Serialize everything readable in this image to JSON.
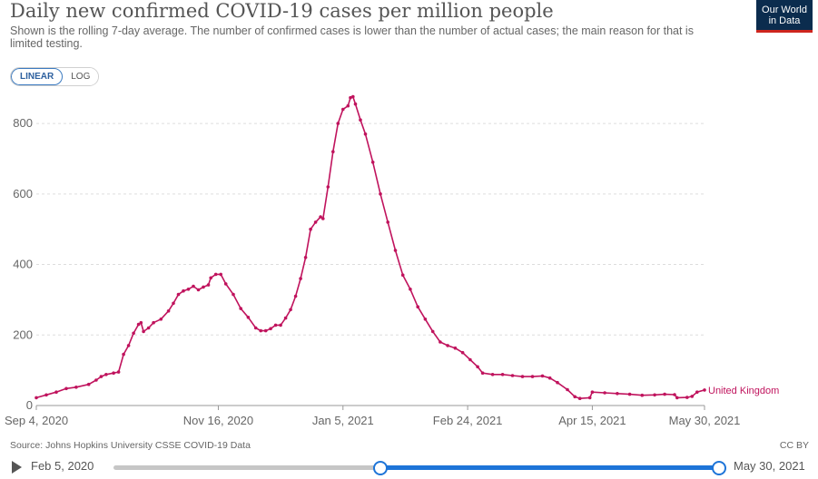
{
  "header": {
    "title": "Daily new confirmed COVID-19 cases per million people",
    "subtitle": "Shown is the rolling 7-day average. The number of confirmed cases is lower than the number of actual cases; the main reason for that is limited testing.",
    "logo_line1": "Our World",
    "logo_line2": "in Data"
  },
  "controls": {
    "linear_label": "LINEAR",
    "log_label": "LOG",
    "active_scale": "linear"
  },
  "footer": {
    "source": "Source: Johns Hopkins University CSSE COVID-19 Data",
    "license": "CC BY"
  },
  "timeline": {
    "start_label": "Feb 5, 2020",
    "end_label": "May 30, 2021",
    "range_start": "2020-09-04",
    "range_end": "2021-05-30"
  },
  "colors": {
    "series": "#c0135d",
    "grid": "#dddddd",
    "axis_text": "#666666",
    "accent": "#1d74d8"
  },
  "chart_data": {
    "type": "line",
    "title": "Daily new confirmed COVID-19 cases per million people",
    "xlabel": "",
    "ylabel": "",
    "ylim": [
      0,
      880
    ],
    "xlim": [
      "2020-09-04",
      "2021-05-30"
    ],
    "y_ticks": [
      0,
      200,
      400,
      600,
      800
    ],
    "x_ticks": [
      {
        "date": "2020-09-04",
        "label": "Sep 4, 2020"
      },
      {
        "date": "2020-11-16",
        "label": "Nov 16, 2020"
      },
      {
        "date": "2021-01-05",
        "label": "Jan 5, 2021"
      },
      {
        "date": "2021-02-24",
        "label": "Feb 24, 2021"
      },
      {
        "date": "2021-04-15",
        "label": "Apr 15, 2021"
      },
      {
        "date": "2021-05-30",
        "label": "May 30, 2021"
      }
    ],
    "grid": "horizontal dashed",
    "series": [
      {
        "name": "United Kingdom",
        "points": [
          [
            "2020-09-04",
            22
          ],
          [
            "2020-09-08",
            30
          ],
          [
            "2020-09-12",
            38
          ],
          [
            "2020-09-16",
            48
          ],
          [
            "2020-09-20",
            52
          ],
          [
            "2020-09-25",
            60
          ],
          [
            "2020-09-28",
            72
          ],
          [
            "2020-09-30",
            82
          ],
          [
            "2020-10-02",
            88
          ],
          [
            "2020-10-05",
            92
          ],
          [
            "2020-10-07",
            95
          ],
          [
            "2020-10-09",
            145
          ],
          [
            "2020-10-11",
            170
          ],
          [
            "2020-10-13",
            205
          ],
          [
            "2020-10-15",
            230
          ],
          [
            "2020-10-16",
            235
          ],
          [
            "2020-10-17",
            210
          ],
          [
            "2020-10-19",
            220
          ],
          [
            "2020-10-21",
            235
          ],
          [
            "2020-10-24",
            245
          ],
          [
            "2020-10-27",
            268
          ],
          [
            "2020-10-29",
            290
          ],
          [
            "2020-10-31",
            315
          ],
          [
            "2020-11-02",
            325
          ],
          [
            "2020-11-04",
            330
          ],
          [
            "2020-11-06",
            338
          ],
          [
            "2020-11-08",
            328
          ],
          [
            "2020-11-10",
            336
          ],
          [
            "2020-11-12",
            342
          ],
          [
            "2020-11-13",
            362
          ],
          [
            "2020-11-15",
            372
          ],
          [
            "2020-11-17",
            372
          ],
          [
            "2020-11-19",
            345
          ],
          [
            "2020-11-22",
            315
          ],
          [
            "2020-11-25",
            275
          ],
          [
            "2020-11-28",
            250
          ],
          [
            "2020-12-01",
            220
          ],
          [
            "2020-12-03",
            212
          ],
          [
            "2020-12-05",
            212
          ],
          [
            "2020-12-07",
            218
          ],
          [
            "2020-12-09",
            228
          ],
          [
            "2020-12-11",
            228
          ],
          [
            "2020-12-13",
            248
          ],
          [
            "2020-12-15",
            272
          ],
          [
            "2020-12-17",
            310
          ],
          [
            "2020-12-19",
            360
          ],
          [
            "2020-12-21",
            420
          ],
          [
            "2020-12-23",
            500
          ],
          [
            "2020-12-25",
            520
          ],
          [
            "2020-12-27",
            535
          ],
          [
            "2020-12-28",
            530
          ],
          [
            "2020-12-30",
            620
          ],
          [
            "2021-01-01",
            720
          ],
          [
            "2021-01-03",
            800
          ],
          [
            "2021-01-05",
            840
          ],
          [
            "2021-01-07",
            850
          ],
          [
            "2021-01-08",
            873
          ],
          [
            "2021-01-09",
            876
          ],
          [
            "2021-01-10",
            855
          ],
          [
            "2021-01-12",
            810
          ],
          [
            "2021-01-14",
            770
          ],
          [
            "2021-01-17",
            690
          ],
          [
            "2021-01-20",
            600
          ],
          [
            "2021-01-23",
            520
          ],
          [
            "2021-01-26",
            440
          ],
          [
            "2021-01-29",
            370
          ],
          [
            "2021-02-01",
            330
          ],
          [
            "2021-02-04",
            280
          ],
          [
            "2021-02-07",
            245
          ],
          [
            "2021-02-10",
            210
          ],
          [
            "2021-02-13",
            180
          ],
          [
            "2021-02-16",
            170
          ],
          [
            "2021-02-19",
            163
          ],
          [
            "2021-02-22",
            150
          ],
          [
            "2021-02-25",
            130
          ],
          [
            "2021-02-28",
            110
          ],
          [
            "2021-03-02",
            92
          ],
          [
            "2021-03-06",
            88
          ],
          [
            "2021-03-10",
            88
          ],
          [
            "2021-03-14",
            85
          ],
          [
            "2021-03-18",
            82
          ],
          [
            "2021-03-22",
            82
          ],
          [
            "2021-03-26",
            84
          ],
          [
            "2021-03-29",
            78
          ],
          [
            "2021-04-01",
            65
          ],
          [
            "2021-04-05",
            45
          ],
          [
            "2021-04-08",
            25
          ],
          [
            "2021-04-10",
            20
          ],
          [
            "2021-04-14",
            22
          ],
          [
            "2021-04-15",
            38
          ],
          [
            "2021-04-20",
            36
          ],
          [
            "2021-04-25",
            34
          ],
          [
            "2021-04-30",
            32
          ],
          [
            "2021-05-05",
            29
          ],
          [
            "2021-05-10",
            30
          ],
          [
            "2021-05-14",
            32
          ],
          [
            "2021-05-18",
            31
          ],
          [
            "2021-05-19",
            22
          ],
          [
            "2021-05-23",
            23
          ],
          [
            "2021-05-25",
            26
          ],
          [
            "2021-05-27",
            38
          ],
          [
            "2021-05-30",
            44
          ]
        ]
      }
    ]
  }
}
